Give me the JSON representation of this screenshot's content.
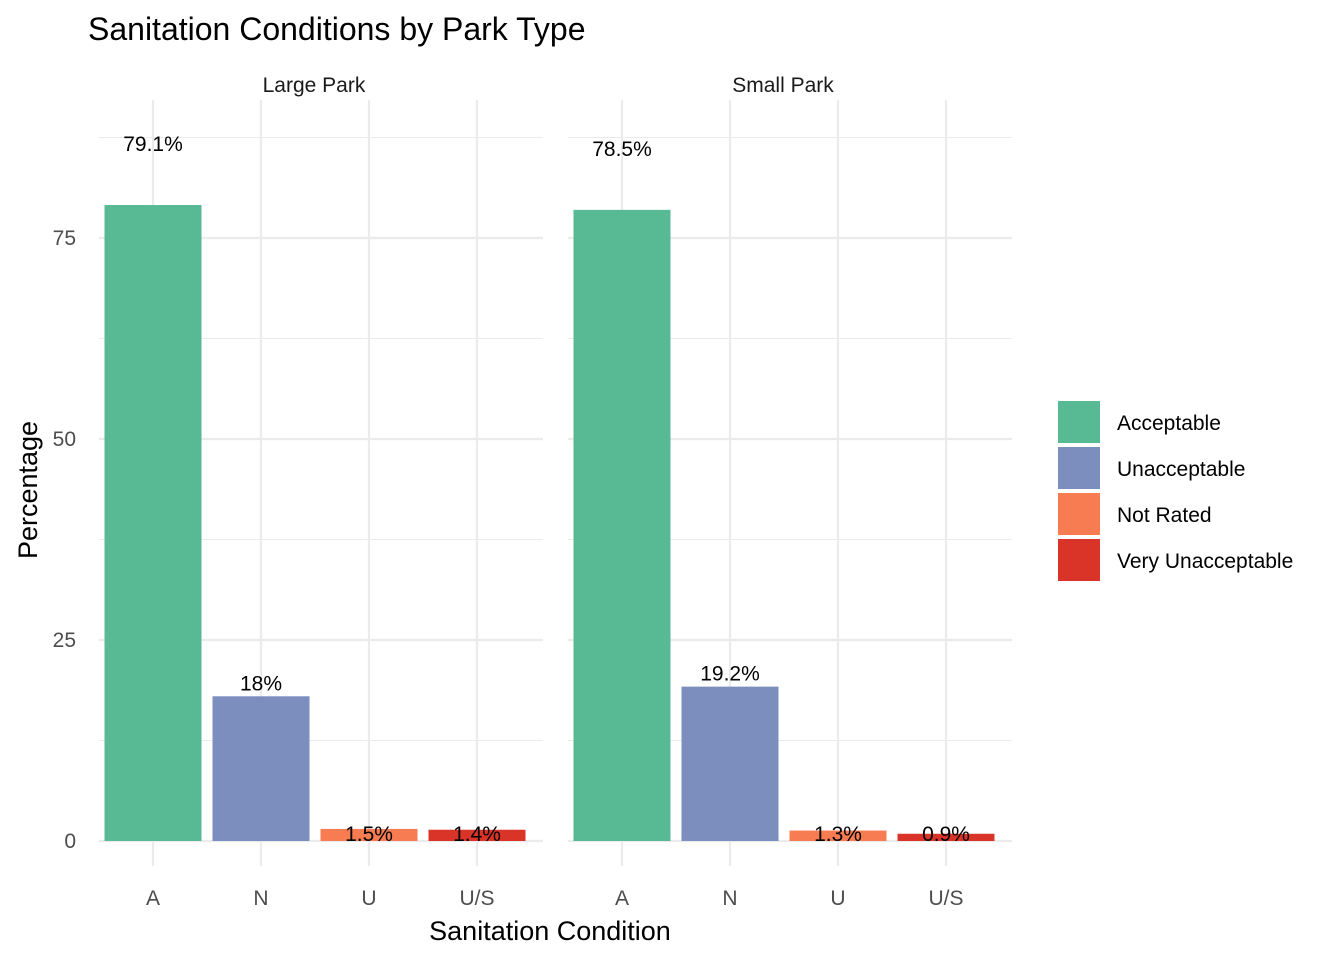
{
  "chart_data": {
    "type": "bar",
    "title": "Sanitation Conditions by Park Type",
    "xlabel": "Sanitation Condition",
    "ylabel": "Percentage",
    "ylim": [
      0,
      90
    ],
    "yticks": [
      0,
      25,
      50,
      75
    ],
    "grid": true,
    "legend_position": "right",
    "categories": [
      "A",
      "N",
      "U",
      "U/S"
    ],
    "series_legend": [
      {
        "name": "Acceptable",
        "color": "#57BA94"
      },
      {
        "name": "Unacceptable",
        "color": "#7B8EBE"
      },
      {
        "name": "Not Rated",
        "color": "#F87C51"
      },
      {
        "name": "Very Unacceptable",
        "color": "#DA3328"
      }
    ],
    "category_colors": {
      "A": "#57BA94",
      "N": "#7B8EBE",
      "U": "#F87C51",
      "U/S": "#DA3328"
    },
    "facets": [
      {
        "name": "Large Park",
        "values": [
          79.1,
          18.0,
          1.5,
          1.4
        ],
        "labels": [
          "79.1%",
          "18%",
          "1.5%",
          "1.4%"
        ]
      },
      {
        "name": "Small Park",
        "values": [
          78.5,
          19.2,
          1.3,
          0.9
        ],
        "labels": [
          "78.5%",
          "19.2%",
          "1.3%",
          "0.9%"
        ]
      }
    ]
  }
}
